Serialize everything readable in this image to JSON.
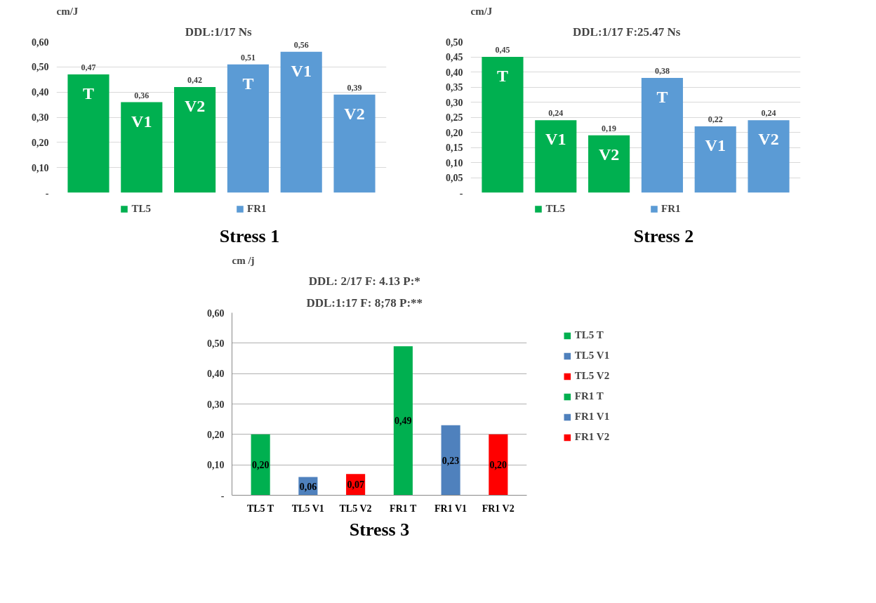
{
  "chart_data": [
    {
      "type": "bar",
      "title": "DDL:1/17   Ns",
      "ylabel": "cm/J",
      "xlabel": "Stress 1",
      "categories": [
        "T",
        "V1",
        "V2",
        "T",
        "V1",
        "V2"
      ],
      "series": [
        {
          "name": "TL5",
          "color": "#00b050",
          "values": [
            0.47,
            0.36,
            0.42,
            null,
            null,
            null
          ],
          "value_labels": [
            "0,47",
            "0,36",
            "0,42",
            null,
            null,
            null
          ]
        },
        {
          "name": "FR1",
          "color": "#5b9bd5",
          "values": [
            null,
            null,
            null,
            0.51,
            0.56,
            0.39
          ],
          "value_labels": [
            null,
            null,
            null,
            "0,51",
            "0,56",
            "0,39"
          ]
        }
      ],
      "ylim": [
        0,
        0.6
      ],
      "yticks": [
        {
          "value": 0,
          "label": "-"
        },
        {
          "value": 0.1,
          "label": "0,10"
        },
        {
          "value": 0.2,
          "label": "0,20"
        },
        {
          "value": 0.3,
          "label": "0,30"
        },
        {
          "value": 0.4,
          "label": "0,40"
        },
        {
          "value": 0.5,
          "label": "0,50"
        },
        {
          "value": 0.6,
          "label": "0,60"
        }
      ],
      "grid": "y",
      "legend": "bottom",
      "tick_labels": "y"
    },
    {
      "type": "bar",
      "title": "DDL:1/17   F:25.47     Ns",
      "ylabel": "cm/J",
      "xlabel": "Stress 2",
      "categories": [
        "T",
        "V1",
        "V2",
        "T",
        "V1",
        "V2"
      ],
      "series": [
        {
          "name": "TL5",
          "color": "#00b050",
          "values": [
            0.45,
            0.24,
            0.19,
            null,
            null,
            null
          ],
          "value_labels": [
            "0,45",
            "0,24",
            "0,19",
            null,
            null,
            null
          ]
        },
        {
          "name": "FR1",
          "color": "#5b9bd5",
          "values": [
            null,
            null,
            null,
            0.38,
            0.22,
            0.24
          ],
          "value_labels": [
            null,
            null,
            null,
            "0,38",
            "0,22",
            "0,24"
          ]
        }
      ],
      "ylim": [
        0,
        0.5
      ],
      "yticks": [
        {
          "value": 0,
          "label": "-"
        },
        {
          "value": 0.05,
          "label": "0,05"
        },
        {
          "value": 0.1,
          "label": "0,10"
        },
        {
          "value": 0.15,
          "label": "0,15"
        },
        {
          "value": 0.2,
          "label": "0,20"
        },
        {
          "value": 0.25,
          "label": "0,25"
        },
        {
          "value": 0.3,
          "label": "0,30"
        },
        {
          "value": 0.35,
          "label": "0,35"
        },
        {
          "value": 0.4,
          "label": "0,40"
        },
        {
          "value": 0.45,
          "label": "0,45"
        },
        {
          "value": 0.5,
          "label": "0,50"
        }
      ],
      "grid": "y",
      "legend": "bottom",
      "tick_labels": "y"
    },
    {
      "type": "bar",
      "title": "DDL: 2/17      F: 4.13      P:*",
      "subtitle": "DDL:1:17      F: 8;78      P:**",
      "ylabel": "cm /j",
      "xlabel": "Stress 3",
      "categories": [
        "TL5 T",
        "TL5 V1",
        "TL5 V2",
        "FR1 T",
        "FR1 V1",
        "FR1 V2"
      ],
      "series": [
        {
          "name": "TL5 T",
          "color": "#00b050",
          "values": [
            0.2,
            null,
            null,
            null,
            null,
            null
          ],
          "value_labels": [
            "0,20",
            null,
            null,
            null,
            null,
            null
          ]
        },
        {
          "name": "TL5 V1",
          "color": "#4f81bd",
          "values": [
            null,
            0.06,
            null,
            null,
            null,
            null
          ],
          "value_labels": [
            null,
            "0,06",
            null,
            null,
            null,
            null
          ]
        },
        {
          "name": "TL5 V2",
          "color": "#ff0000",
          "values": [
            null,
            null,
            0.07,
            null,
            null,
            null
          ],
          "value_labels": [
            null,
            null,
            "0,07",
            null,
            null,
            null
          ]
        },
        {
          "name": "FR1 T",
          "color": "#00b050",
          "values": [
            null,
            null,
            null,
            0.49,
            null,
            null
          ],
          "value_labels": [
            null,
            null,
            null,
            "0,49",
            null,
            null
          ]
        },
        {
          "name": "FR1 V1",
          "color": "#4f81bd",
          "values": [
            null,
            null,
            null,
            null,
            0.23,
            null
          ],
          "value_labels": [
            null,
            null,
            null,
            null,
            "0,23",
            null
          ]
        },
        {
          "name": "FR1 V2",
          "color": "#ff0000",
          "values": [
            null,
            null,
            null,
            null,
            null,
            0.2
          ],
          "value_labels": [
            null,
            null,
            null,
            null,
            null,
            "0,20"
          ]
        }
      ],
      "ylim": [
        0,
        0.6
      ],
      "yticks": [
        {
          "value": 0,
          "label": "-"
        },
        {
          "value": 0.1,
          "label": "0,10"
        },
        {
          "value": 0.2,
          "label": "0,20"
        },
        {
          "value": 0.3,
          "label": "0,30"
        },
        {
          "value": 0.4,
          "label": "0,40"
        },
        {
          "value": 0.5,
          "label": "0,50"
        },
        {
          "value": 0.6,
          "label": "0,60"
        }
      ],
      "grid": "y",
      "legend": "right"
    }
  ]
}
